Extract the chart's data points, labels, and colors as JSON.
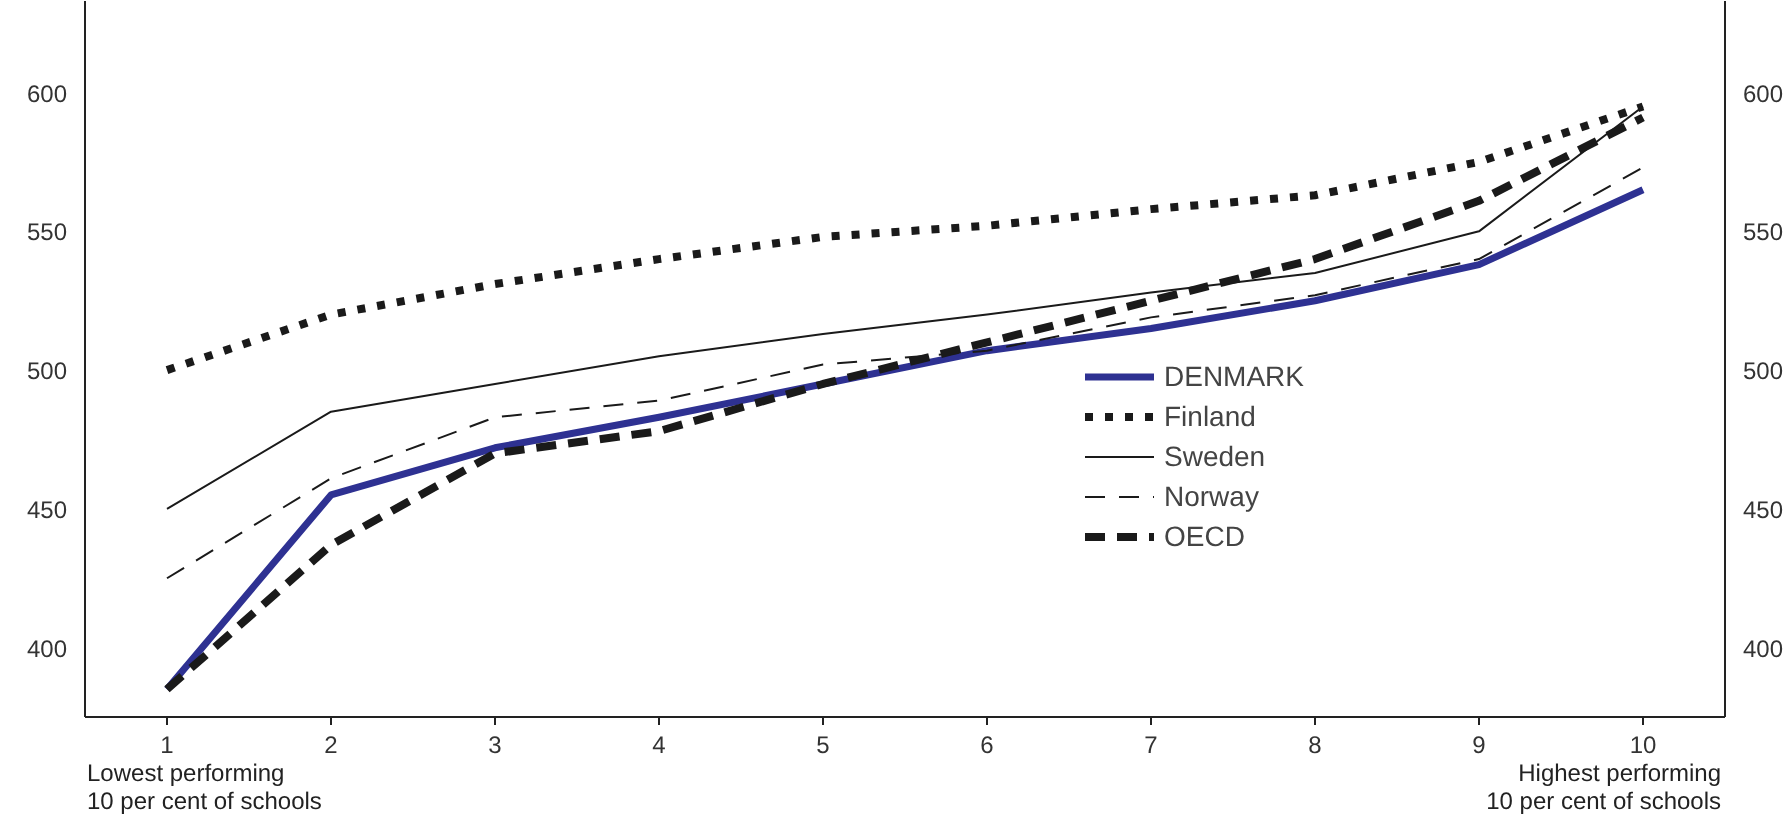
{
  "chart_data": {
    "type": "line",
    "x": [
      1,
      2,
      3,
      4,
      5,
      6,
      7,
      8,
      9,
      10
    ],
    "series": [
      {
        "name": "DENMARK",
        "color": "#2e3192",
        "line_style": "solid",
        "values": [
          385,
          455,
          472,
          483,
          495,
          507,
          515,
          525,
          538,
          565
        ]
      },
      {
        "name": "Finland",
        "color": "#1a1a1a",
        "line_style": "dotted",
        "values": [
          500,
          520,
          531,
          540,
          548,
          552,
          558,
          563,
          575,
          595
        ]
      },
      {
        "name": "Sweden",
        "color": "#1a1a1a",
        "line_style": "solid",
        "values": [
          450,
          485,
          495,
          505,
          513,
          520,
          528,
          535,
          550,
          595
        ]
      },
      {
        "name": "Norway",
        "color": "#1a1a1a",
        "line_style": "dashed",
        "values": [
          425,
          461,
          483,
          489,
          502,
          507,
          519,
          527,
          540,
          573
        ]
      },
      {
        "name": "OECD",
        "color": "#1a1a1a",
        "line_style": "dashed",
        "values": [
          385,
          437,
          470,
          478,
          495,
          510,
          525,
          540,
          561,
          591
        ]
      }
    ],
    "xlim": [
      0.5,
      10.5
    ],
    "xticks": [
      1,
      2,
      3,
      4,
      5,
      6,
      7,
      8,
      9,
      10
    ],
    "ylim": [
      375,
      633
    ],
    "yticks": [
      400,
      450,
      500,
      550,
      600
    ],
    "y2lim": [
      375,
      633
    ],
    "y2ticks": [
      400,
      450,
      500,
      550,
      600
    ],
    "annotations": [
      "Lowest performing\n10 per cent of schools",
      "Highest performing\n10 per cent of schools"
    ],
    "grid": false,
    "legend": "center right",
    "marker": "none"
  }
}
